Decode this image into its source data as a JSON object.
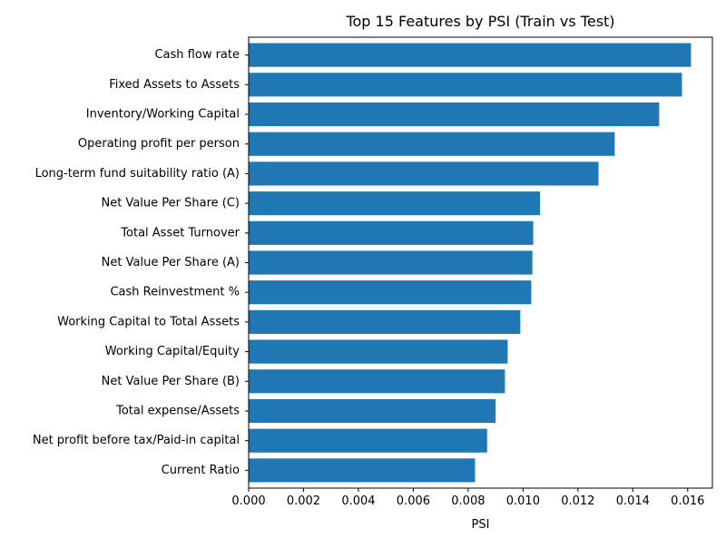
{
  "chart_data": {
    "type": "bar",
    "orientation": "horizontal",
    "title": "Top 15 Features by PSI (Train vs Test)",
    "xlabel": "PSI",
    "ylabel": "",
    "xlim": [
      0.0,
      0.0169
    ],
    "xticks": [
      "0.000",
      "0.002",
      "0.004",
      "0.006",
      "0.008",
      "0.010",
      "0.012",
      "0.014",
      "0.016"
    ],
    "grid": false,
    "bar_color": "#1f77b4",
    "categories": [
      "Cash flow rate",
      "Fixed Assets to Assets",
      "Inventory/Working Capital",
      "Operating profit per person",
      "Long-term fund suitability ratio (A)",
      "Net Value Per Share (C)",
      "Total Asset Turnover",
      "Net Value Per Share (A)",
      "Cash Reinvestment %",
      "Working Capital to Total Assets",
      "Working Capital/Equity",
      "Net Value Per Share (B)",
      "Total expense/Assets",
      "Net profit before tax/Paid-in capital",
      "Current Ratio"
    ],
    "values": [
      0.01612,
      0.01579,
      0.01496,
      0.01334,
      0.01275,
      0.01062,
      0.01037,
      0.01034,
      0.0103,
      0.0099,
      0.00944,
      0.00934,
      0.009,
      0.00869,
      0.00825
    ]
  }
}
